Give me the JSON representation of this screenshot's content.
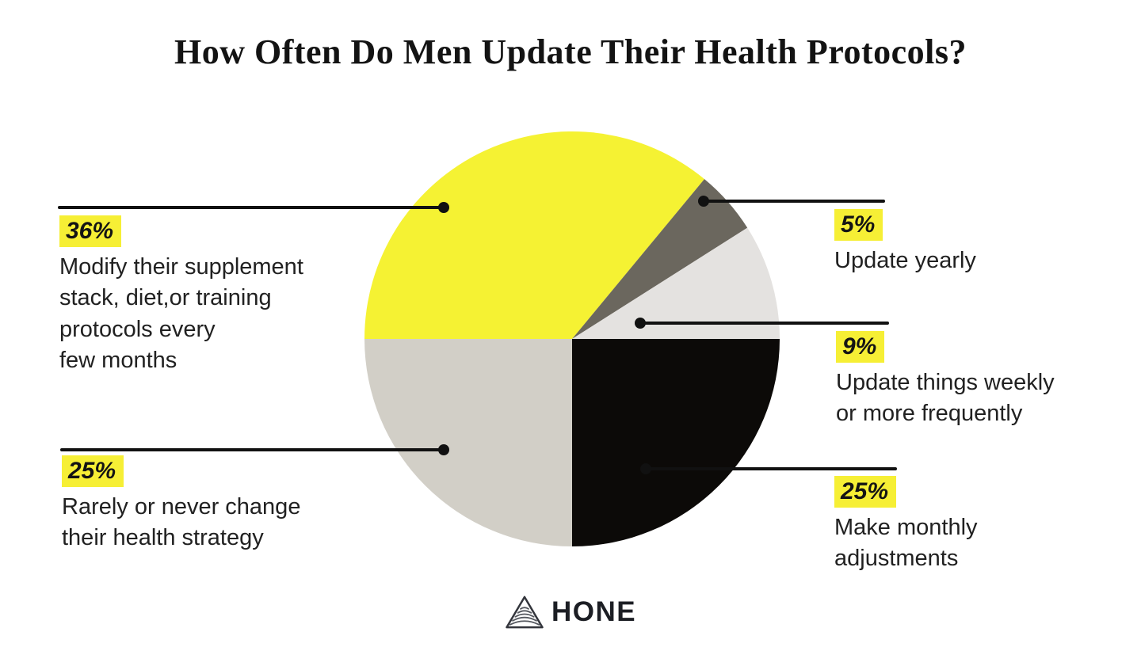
{
  "title": "How Often Do Men Update Their Health Protocols?",
  "chart_data": {
    "type": "pie",
    "title": "How Often Do Men Update Their Health Protocols?",
    "start_angle_deg_clockwise_from_top": 270,
    "total": 100,
    "legend_position": "callout-labels",
    "slices": [
      {
        "label": "Modify their supplement stack, diet,or training protocols every few months",
        "value": 36,
        "color": "#f5f233"
      },
      {
        "label": "Update yearly",
        "value": 5,
        "color": "#6b675e"
      },
      {
        "label": "Update things weekly or more frequently",
        "value": 9,
        "color": "#e4e2e0"
      },
      {
        "label": "Make monthly adjustments",
        "value": 25,
        "color": "#0c0a08"
      },
      {
        "label": "Rarely or never change their health strategy",
        "value": 25,
        "color": "#d2cfc7"
      }
    ]
  },
  "callouts": [
    {
      "pct": "36%",
      "text": "Modify their supplement\nstack, diet,or training\nprotocols every\nfew months"
    },
    {
      "pct": "5%",
      "text": "Update yearly"
    },
    {
      "pct": "9%",
      "text": "Update things weekly\nor more frequently"
    },
    {
      "pct": "25%",
      "text": "Make monthly\nadjustments"
    },
    {
      "pct": "25%",
      "text": "Rarely or never change\ntheir health strategy"
    }
  ],
  "brand": {
    "name": "HONE",
    "icon": "hone-triangle-icon"
  },
  "colors": {
    "background": "#ffffff",
    "highlight_yellow": "#f6ef35",
    "callout_line": "#111111",
    "title_text": "#131313",
    "body_text": "#212121"
  }
}
